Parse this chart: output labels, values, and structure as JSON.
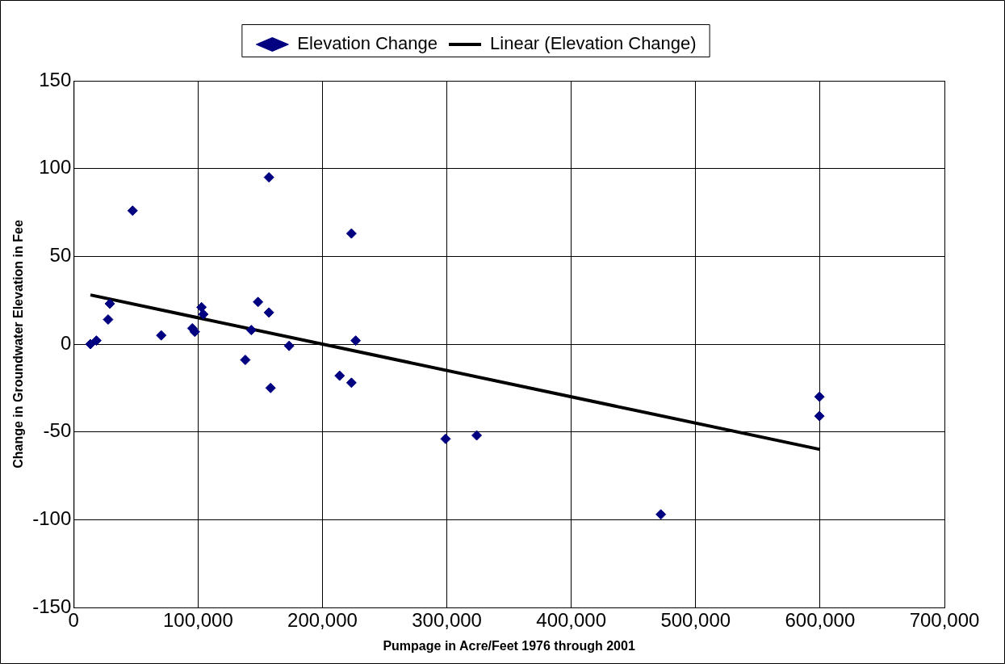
{
  "chart_data": {
    "type": "scatter",
    "xlabel": "Pumpage in Acre/Feet 1976 through 2001",
    "ylabel": "Change in Groundwater Elevation in Fee",
    "xlim": [
      0,
      700000
    ],
    "ylim": [
      -150,
      150
    ],
    "xticks": [
      0,
      {
        "value": 100000,
        "label": "100,000"
      },
      {
        "value": 200000,
        "label": "200,000"
      },
      {
        "value": 300000,
        "label": "300,000"
      },
      {
        "value": 400000,
        "label": "400,000"
      },
      {
        "value": 500000,
        "label": "500,000"
      },
      {
        "value": 600000,
        "label": "600,000"
      },
      {
        "value": 700000,
        "label": "700,000"
      }
    ],
    "yticks": [
      -150,
      -100,
      -50,
      0,
      50,
      100,
      150
    ],
    "grid": true,
    "legend": "top",
    "series": [
      {
        "name": "Elevation Change",
        "marker": "diamond",
        "color": "#000080",
        "x": [
          13500,
          18300,
          29100,
          27700,
          47400,
          70400,
          95400,
          97400,
          102800,
          104200,
          138000,
          142800,
          148200,
          157000,
          157000,
          158300,
          173200,
          213800,
          223300,
          223300,
          226700,
          299000,
          324000,
          472000,
          599500,
          599500
        ],
        "values": [
          0,
          2,
          23,
          14,
          76,
          5,
          9,
          7,
          21,
          17,
          -9,
          8,
          24,
          95,
          18,
          -25,
          -1,
          -18,
          63,
          -22,
          2,
          -54,
          -52,
          -97,
          -30,
          -41
        ]
      },
      {
        "name": "Linear (Elevation Change)",
        "type": "line",
        "marker": "none",
        "color": "#000000",
        "line_style": "solid",
        "x": [
          13500,
          600000
        ],
        "values": [
          28,
          -60
        ]
      }
    ]
  }
}
